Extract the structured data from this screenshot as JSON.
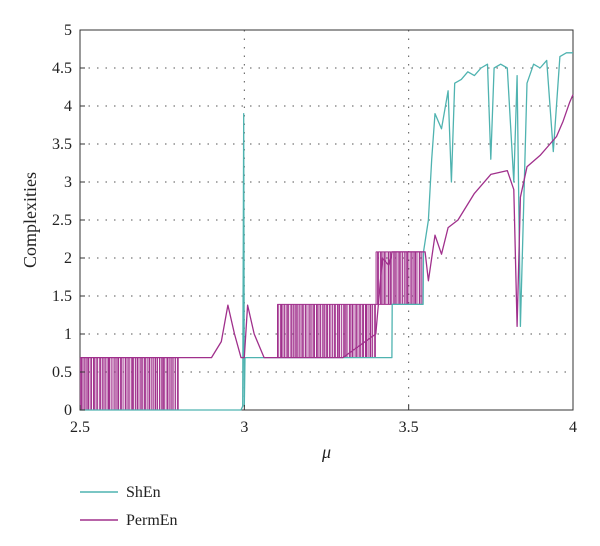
{
  "chart_data": {
    "type": "line",
    "title": "",
    "xlabel": "μ",
    "ylabel": "Complexities",
    "xlim": [
      2.5,
      4
    ],
    "ylim": [
      0,
      5
    ],
    "xticks": [
      "2.5",
      "3",
      "3.5",
      "4"
    ],
    "yticks": [
      "0",
      "0.5",
      "1",
      "1.5",
      "2",
      "2.5",
      "3",
      "3.5",
      "4",
      "4.5",
      "5"
    ],
    "grid": "dotted",
    "legend_position": "below",
    "colors": {
      "ShEn": "#4fb3b0",
      "PermEn": "#a0308c"
    },
    "series": [
      {
        "name": "ShEn",
        "x": [
          2.5,
          2.6,
          2.7,
          2.8,
          2.9,
          2.99,
          2.995,
          2.998,
          3.0,
          3.002,
          3.005,
          3.1,
          3.2,
          3.3,
          3.4,
          3.449,
          3.45,
          3.5,
          3.544,
          3.545,
          3.56,
          3.57,
          3.58,
          3.6,
          3.62,
          3.63,
          3.64,
          3.66,
          3.68,
          3.7,
          3.72,
          3.74,
          3.75,
          3.76,
          3.78,
          3.8,
          3.82,
          3.83,
          3.84,
          3.86,
          3.88,
          3.9,
          3.92,
          3.94,
          3.96,
          3.98,
          4.0
        ],
        "values": [
          0,
          0,
          0,
          0,
          0,
          0,
          0.05,
          3.9,
          0.05,
          0.69,
          0.69,
          0.69,
          0.69,
          0.69,
          0.69,
          0.69,
          1.39,
          1.39,
          1.39,
          2.08,
          2.5,
          3.3,
          3.9,
          3.7,
          4.2,
          3.0,
          4.3,
          4.35,
          4.45,
          4.4,
          4.5,
          4.55,
          3.3,
          4.5,
          4.55,
          4.5,
          3.0,
          4.4,
          1.1,
          4.3,
          4.55,
          4.5,
          4.6,
          3.4,
          4.65,
          4.7,
          4.7
        ]
      },
      {
        "name": "PermEn",
        "x": [
          2.5,
          2.6,
          2.7,
          2.8,
          2.85,
          2.9,
          2.93,
          2.95,
          2.97,
          2.99,
          3.0,
          3.01,
          3.03,
          3.06,
          3.1,
          3.2,
          3.3,
          3.4,
          3.42,
          3.44,
          3.45,
          3.5,
          3.55,
          3.56,
          3.58,
          3.6,
          3.62,
          3.65,
          3.7,
          3.72,
          3.75,
          3.8,
          3.82,
          3.83,
          3.84,
          3.86,
          3.9,
          3.93,
          3.95,
          3.97,
          3.99,
          4.0
        ],
        "values": [
          0.69,
          0.69,
          0.69,
          0.69,
          0.69,
          0.69,
          0.9,
          1.38,
          1.0,
          0.69,
          0.69,
          1.38,
          1.0,
          0.69,
          0.69,
          0.69,
          0.69,
          1.0,
          2.0,
          1.9,
          2.08,
          2.08,
          2.08,
          1.7,
          2.3,
          2.05,
          2.4,
          2.5,
          2.85,
          2.95,
          3.1,
          3.15,
          2.9,
          1.1,
          2.8,
          3.2,
          3.35,
          3.5,
          3.6,
          3.8,
          4.05,
          4.15
        ]
      }
    ],
    "oscillation_bands": [
      {
        "series": "PermEn",
        "from": 2.5,
        "to": 2.8,
        "low": 0,
        "high": 0.69
      },
      {
        "series": "PermEn",
        "from": 3.1,
        "to": 3.4,
        "low": 0.69,
        "high": 1.39
      },
      {
        "series": "PermEn",
        "from": 3.4,
        "to": 3.54,
        "low": 1.39,
        "high": 2.08
      }
    ]
  }
}
